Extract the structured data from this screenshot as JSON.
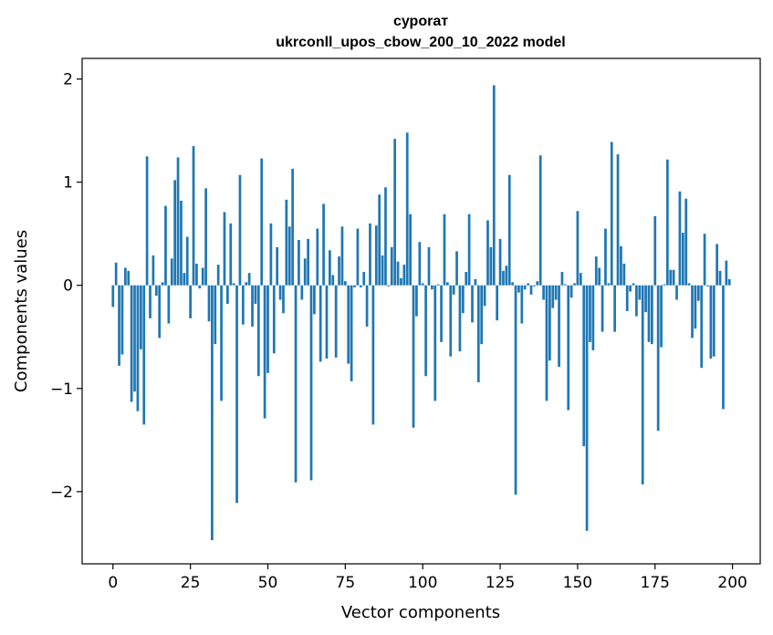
{
  "chart_data": {
    "type": "bar",
    "title_line1": "суроrат",
    "title_line2": "ukrconll_upos_cbow_200_10_2022 model",
    "xlabel": "Vector components",
    "ylabel": "Components values",
    "xlim": [
      -9.95,
      208.95
    ],
    "ylim": [
      -2.7,
      2.2
    ],
    "xticks": [
      0,
      25,
      50,
      75,
      100,
      125,
      150,
      175,
      200
    ],
    "xtick_labels": [
      "0",
      "25",
      "50",
      "75",
      "100",
      "125",
      "150",
      "175",
      "200"
    ],
    "yticks": [
      -2,
      -1,
      0,
      1,
      2
    ],
    "ytick_labels": [
      "−2",
      "−1",
      "0",
      "1",
      "2"
    ],
    "bar_color": "#1f77b4",
    "values": [
      -0.21,
      0.22,
      -0.78,
      -0.67,
      0.17,
      0.14,
      -1.13,
      -1.03,
      -1.22,
      -0.62,
      -1.35,
      1.25,
      -0.32,
      0.29,
      -0.1,
      -0.51,
      0.03,
      0.77,
      -0.37,
      0.26,
      1.02,
      1.24,
      0.82,
      0.12,
      0.47,
      -0.32,
      1.35,
      0.21,
      -0.03,
      0.17,
      0.94,
      -0.35,
      -2.47,
      -0.57,
      0.2,
      -1.12,
      0.71,
      -0.18,
      0.6,
      0.02,
      -2.11,
      1.07,
      -0.38,
      0.03,
      0.12,
      -0.4,
      -0.18,
      -0.88,
      1.23,
      -1.29,
      -0.85,
      0.6,
      -0.66,
      0.37,
      -0.14,
      -0.27,
      0.83,
      0.57,
      1.13,
      -1.91,
      0.44,
      -0.14,
      0.26,
      0.45,
      -1.89,
      -0.28,
      0.55,
      -0.74,
      0.79,
      -0.71,
      0.34,
      0.1,
      -0.7,
      0.28,
      0.57,
      0.04,
      -0.76,
      -0.93,
      -0.02,
      0.55,
      -0.02,
      0.13,
      -0.4,
      0.6,
      -1.35,
      0.58,
      0.88,
      0.29,
      0.95,
      -0.01,
      0.37,
      1.42,
      0.23,
      0.07,
      0.2,
      1.48,
      0.69,
      -1.38,
      -0.3,
      0.42,
      0.02,
      -0.88,
      0.37,
      -0.04,
      -1.12,
      0.01,
      -0.55,
      0.69,
      0.03,
      -0.69,
      -0.09,
      0.33,
      -0.64,
      -0.27,
      0.13,
      0.69,
      -0.36,
      0.06,
      -0.94,
      -0.57,
      -0.2,
      0.63,
      0.37,
      1.94,
      -0.34,
      0.45,
      0.14,
      0.19,
      1.07,
      0.03,
      -2.03,
      -0.07,
      -0.37,
      -0.04,
      0.02,
      -0.09,
      -0.01,
      0.04,
      1.26,
      -0.14,
      -1.12,
      -0.73,
      -0.22,
      -0.14,
      -0.79,
      0.13,
      0.01,
      -1.21,
      -0.12,
      0.02,
      0.72,
      0.12,
      -1.56,
      -2.38,
      -0.55,
      -0.63,
      0.28,
      0.17,
      -0.45,
      0.55,
      0.02,
      1.39,
      -0.45,
      1.27,
      0.38,
      0.21,
      -0.25,
      -0.06,
      0.02,
      -0.3,
      -0.14,
      -1.93,
      -0.26,
      -0.55,
      -0.57,
      0.67,
      -1.41,
      -0.6,
      0.01,
      1.22,
      0.15,
      0.15,
      -0.14,
      0.91,
      0.51,
      0.84,
      0.02,
      -0.51,
      -0.42,
      -0.15,
      -0.8,
      0.5,
      -0.01,
      -0.71,
      -0.69,
      0.4,
      0.14,
      -1.2,
      0.24,
      0.06
    ]
  }
}
